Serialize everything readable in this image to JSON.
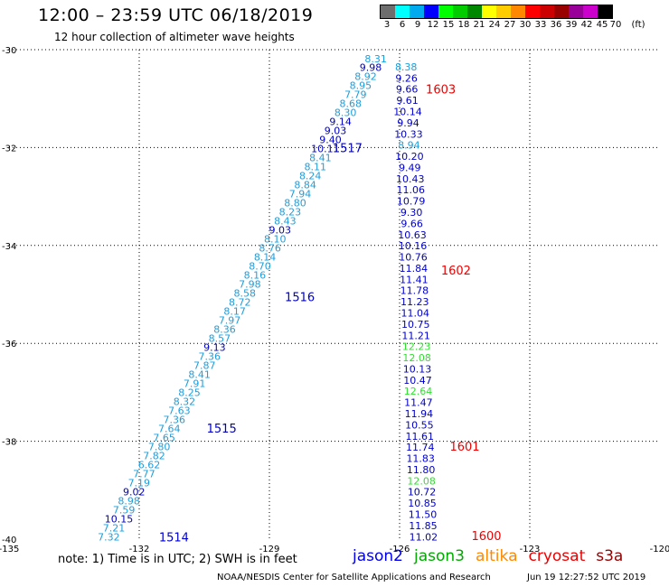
{
  "header": {
    "title": "12:00 – 23:59 UTC 06/18/2019",
    "subtitle": "12 hour collection of altimeter wave heights"
  },
  "legend": {
    "unit": "(ft)",
    "levels": [
      {
        "label": "3",
        "color": "#6e6e6e"
      },
      {
        "label": "6",
        "color": "#00ffff"
      },
      {
        "label": "9",
        "color": "#00aaee"
      },
      {
        "label": "12",
        "color": "#0000ff"
      },
      {
        "label": "15",
        "color": "#00ff00"
      },
      {
        "label": "18",
        "color": "#00cc00"
      },
      {
        "label": "21",
        "color": "#008800"
      },
      {
        "label": "24",
        "color": "#ffff00"
      },
      {
        "label": "27",
        "color": "#ffcc00"
      },
      {
        "label": "30",
        "color": "#ff8800"
      },
      {
        "label": "33",
        "color": "#ff0000"
      },
      {
        "label": "36",
        "color": "#cc0000"
      },
      {
        "label": "39",
        "color": "#990000"
      },
      {
        "label": "42",
        "color": "#990099"
      },
      {
        "label": "45",
        "color": "#cc00cc"
      },
      {
        "label": "70",
        "color": "#000000"
      }
    ]
  },
  "map": {
    "lon_range": [
      -135,
      -120
    ],
    "lat_range": [
      -40,
      -30
    ],
    "lon_ticks": [
      "-135",
      "-132",
      "-129",
      "-126",
      "-123",
      "-120"
    ],
    "lat_ticks": [
      "-30",
      "-32",
      "-34",
      "-36",
      "-38",
      "-40"
    ],
    "colors": {
      "lightblue": "#1aa0e0",
      "darkblue": "#0000c8",
      "green": "#33dd33",
      "red": "#ee0000"
    },
    "passes": [
      {
        "label": "1514",
        "color": "darkblue",
        "lon": -131.2,
        "lat": -39.95
      },
      {
        "label": "1515",
        "color": "darkblue",
        "lon": -130.1,
        "lat": -37.73
      },
      {
        "label": "1516",
        "color": "darkblue",
        "lon": -128.3,
        "lat": -35.05
      },
      {
        "label": "1517",
        "color": "darkblue",
        "lon": -127.2,
        "lat": -32.0
      },
      {
        "label": "1603",
        "color": "red",
        "lon": -125.05,
        "lat": -30.8
      },
      {
        "label": "1602",
        "color": "red",
        "lon": -124.7,
        "lat": -34.5
      },
      {
        "label": "1601",
        "color": "red",
        "lon": -124.5,
        "lat": -38.1
      },
      {
        "label": "1600",
        "color": "red",
        "lon": -124.0,
        "lat": -39.93
      }
    ],
    "tracks": [
      {
        "name": "descending-diagonal",
        "start": {
          "lon": -132.7,
          "lat": -39.95
        },
        "end": {
          "lon": -126.55,
          "lat": -30.18
        },
        "values": [
          {
            "v": "7.32",
            "c": "lightblue"
          },
          {
            "v": "7.21",
            "c": "lightblue"
          },
          {
            "v": "10.15",
            "c": "darkblue"
          },
          {
            "v": "7.59",
            "c": "lightblue"
          },
          {
            "v": "8.98",
            "c": "lightblue"
          },
          {
            "v": "9.02",
            "c": "darkblue"
          },
          {
            "v": "7.19",
            "c": "lightblue"
          },
          {
            "v": "7.77",
            "c": "lightblue"
          },
          {
            "v": "6.62",
            "c": "lightblue"
          },
          {
            "v": "7.82",
            "c": "lightblue"
          },
          {
            "v": "7.80",
            "c": "lightblue"
          },
          {
            "v": "7.65",
            "c": "lightblue"
          },
          {
            "v": "7.64",
            "c": "lightblue"
          },
          {
            "v": "7.36",
            "c": "lightblue"
          },
          {
            "v": "7.63",
            "c": "lightblue"
          },
          {
            "v": "8.32",
            "c": "lightblue"
          },
          {
            "v": "8.25",
            "c": "lightblue"
          },
          {
            "v": "7.91",
            "c": "lightblue"
          },
          {
            "v": "8.41",
            "c": "lightblue"
          },
          {
            "v": "7.87",
            "c": "lightblue"
          },
          {
            "v": "7.36",
            "c": "lightblue"
          },
          {
            "v": "9.13",
            "c": "darkblue"
          },
          {
            "v": "8.57",
            "c": "lightblue"
          },
          {
            "v": "8.36",
            "c": "lightblue"
          },
          {
            "v": "7.97",
            "c": "lightblue"
          },
          {
            "v": "8.17",
            "c": "lightblue"
          },
          {
            "v": "8.72",
            "c": "lightblue"
          },
          {
            "v": "8.58",
            "c": "lightblue"
          },
          {
            "v": "7.98",
            "c": "lightblue"
          },
          {
            "v": "8.16",
            "c": "lightblue"
          },
          {
            "v": "8.70",
            "c": "lightblue"
          },
          {
            "v": "8.14",
            "c": "lightblue"
          },
          {
            "v": "8.76",
            "c": "lightblue"
          },
          {
            "v": "8.10",
            "c": "lightblue"
          },
          {
            "v": "9.03",
            "c": "darkblue"
          },
          {
            "v": "8.43",
            "c": "lightblue"
          },
          {
            "v": "8.23",
            "c": "lightblue"
          },
          {
            "v": "8.80",
            "c": "lightblue"
          },
          {
            "v": "7.94",
            "c": "lightblue"
          },
          {
            "v": "8.84",
            "c": "lightblue"
          },
          {
            "v": "8.24",
            "c": "lightblue"
          },
          {
            "v": "8.11",
            "c": "lightblue"
          },
          {
            "v": "8.41",
            "c": "lightblue"
          },
          {
            "v": "10.11",
            "c": "darkblue"
          },
          {
            "v": "9.40",
            "c": "darkblue"
          },
          {
            "v": "9.03",
            "c": "darkblue"
          },
          {
            "v": "9.14",
            "c": "darkblue"
          },
          {
            "v": "8.30",
            "c": "lightblue"
          },
          {
            "v": "8.68",
            "c": "lightblue"
          },
          {
            "v": "7.79",
            "c": "lightblue"
          },
          {
            "v": "8.95",
            "c": "lightblue"
          },
          {
            "v": "8.92",
            "c": "lightblue"
          },
          {
            "v": "9.98",
            "c": "darkblue"
          },
          {
            "v": "8.31",
            "c": "lightblue"
          }
        ]
      },
      {
        "name": "vertical",
        "start": {
          "lon": -125.85,
          "lat": -30.35
        },
        "end": {
          "lon": -125.45,
          "lat": -39.95
        },
        "values": [
          {
            "v": "8.38",
            "c": "lightblue"
          },
          {
            "v": "9.26",
            "c": "darkblue"
          },
          {
            "v": "9.66",
            "c": "darkblue"
          },
          {
            "v": "9.61",
            "c": "darkblue"
          },
          {
            "v": "10.14",
            "c": "darkblue"
          },
          {
            "v": "9.94",
            "c": "darkblue"
          },
          {
            "v": "10.33",
            "c": "darkblue"
          },
          {
            "v": "8.94",
            "c": "lightblue"
          },
          {
            "v": "10.20",
            "c": "darkblue"
          },
          {
            "v": "9.49",
            "c": "darkblue"
          },
          {
            "v": "10.43",
            "c": "darkblue"
          },
          {
            "v": "11.06",
            "c": "darkblue"
          },
          {
            "v": "10.79",
            "c": "darkblue"
          },
          {
            "v": "9.30",
            "c": "darkblue"
          },
          {
            "v": "9.66",
            "c": "darkblue"
          },
          {
            "v": "10.63",
            "c": "darkblue"
          },
          {
            "v": "10.16",
            "c": "darkblue"
          },
          {
            "v": "10.76",
            "c": "darkblue"
          },
          {
            "v": "11.84",
            "c": "darkblue"
          },
          {
            "v": "11.41",
            "c": "darkblue"
          },
          {
            "v": "11.78",
            "c": "darkblue"
          },
          {
            "v": "11.23",
            "c": "darkblue"
          },
          {
            "v": "11.04",
            "c": "darkblue"
          },
          {
            "v": "10.75",
            "c": "darkblue"
          },
          {
            "v": "11.21",
            "c": "darkblue"
          },
          {
            "v": "12.23",
            "c": "green"
          },
          {
            "v": "12.08",
            "c": "green"
          },
          {
            "v": "10.13",
            "c": "darkblue"
          },
          {
            "v": "10.47",
            "c": "darkblue"
          },
          {
            "v": "12.64",
            "c": "green"
          },
          {
            "v": "11.47",
            "c": "darkblue"
          },
          {
            "v": "11.94",
            "c": "darkblue"
          },
          {
            "v": "10.55",
            "c": "darkblue"
          },
          {
            "v": "11.61",
            "c": "darkblue"
          },
          {
            "v": "11.74",
            "c": "darkblue"
          },
          {
            "v": "11.83",
            "c": "darkblue"
          },
          {
            "v": "11.80",
            "c": "darkblue"
          },
          {
            "v": "12.08",
            "c": "green"
          },
          {
            "v": "10.72",
            "c": "darkblue"
          },
          {
            "v": "10.85",
            "c": "darkblue"
          },
          {
            "v": "11.50",
            "c": "darkblue"
          },
          {
            "v": "11.85",
            "c": "darkblue"
          },
          {
            "v": "11.02",
            "c": "darkblue"
          }
        ]
      }
    ]
  },
  "footer": {
    "note": "note: 1) Time is in UTC; 2) SWH is in feet",
    "satellites": [
      {
        "name": "jason2",
        "color": "#0000ee"
      },
      {
        "name": "jason3",
        "color": "#00aa00"
      },
      {
        "name": "altika",
        "color": "#ff8800"
      },
      {
        "name": "cryosat",
        "color": "#ee0000"
      },
      {
        "name": "s3a",
        "color": "#990000"
      }
    ],
    "credit": "NOAA/NESDIS Center for Satellite Applications and Research",
    "timestamp": "Jun 19 12:27:52 UTC 2019"
  }
}
